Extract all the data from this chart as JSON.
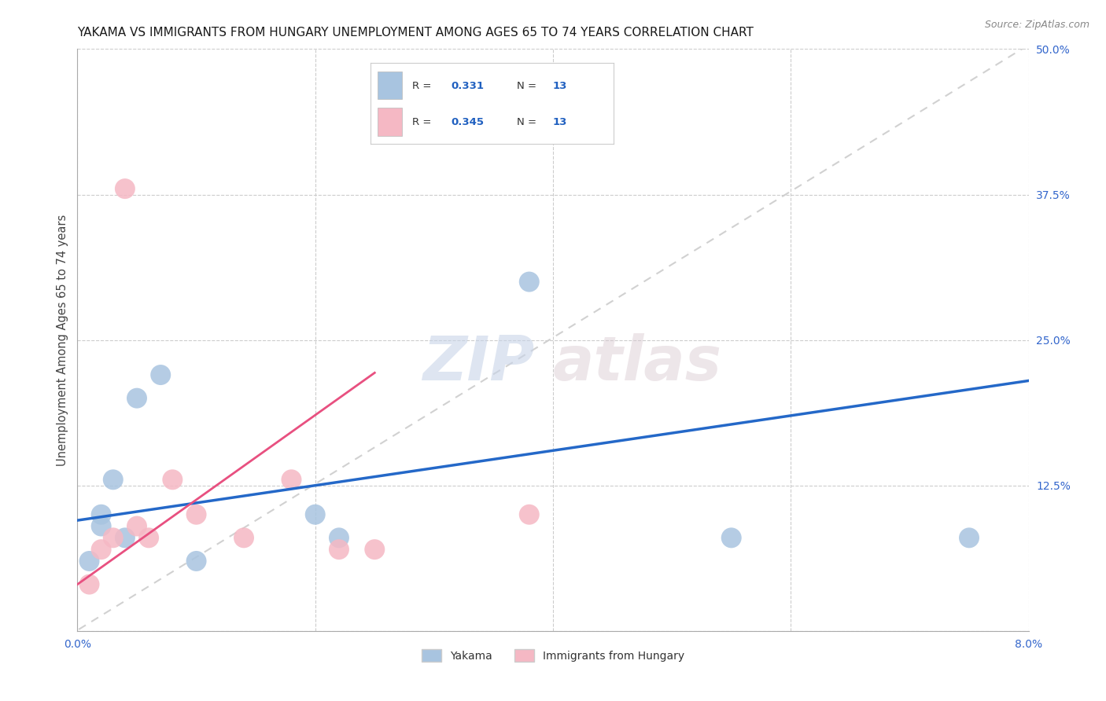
{
  "title": "YAKAMA VS IMMIGRANTS FROM HUNGARY UNEMPLOYMENT AMONG AGES 65 TO 74 YEARS CORRELATION CHART",
  "source": "Source: ZipAtlas.com",
  "ylabel": "Unemployment Among Ages 65 to 74 years",
  "xlim": [
    0.0,
    0.08
  ],
  "ylim": [
    0.0,
    0.5
  ],
  "xticks": [
    0.0,
    0.02,
    0.04,
    0.06,
    0.08
  ],
  "xticklabels": [
    "0.0%",
    "",
    "",
    "",
    "8.0%"
  ],
  "yticks": [
    0.0,
    0.125,
    0.25,
    0.375,
    0.5
  ],
  "yticklabels": [
    "",
    "12.5%",
    "25.0%",
    "37.5%",
    "50.0%"
  ],
  "yakama_x": [
    0.001,
    0.002,
    0.002,
    0.003,
    0.004,
    0.005,
    0.007,
    0.01,
    0.02,
    0.022,
    0.038,
    0.055,
    0.075
  ],
  "yakama_y": [
    0.06,
    0.09,
    0.1,
    0.13,
    0.08,
    0.2,
    0.22,
    0.06,
    0.1,
    0.08,
    0.3,
    0.08,
    0.08
  ],
  "hungary_x": [
    0.001,
    0.002,
    0.003,
    0.004,
    0.005,
    0.006,
    0.008,
    0.01,
    0.014,
    0.018,
    0.022,
    0.025,
    0.038
  ],
  "hungary_y": [
    0.04,
    0.07,
    0.08,
    0.38,
    0.09,
    0.08,
    0.13,
    0.1,
    0.08,
    0.13,
    0.07,
    0.07,
    0.1
  ],
  "yakama_color": "#a8c4e0",
  "hungary_color": "#f5b8c4",
  "yakama_line_color": "#2468c8",
  "hungary_line_color": "#e85080",
  "diagonal_color": "#cccccc",
  "r_yakama": "0.331",
  "n_yakama": "13",
  "r_hungary": "0.345",
  "n_hungary": "13",
  "legend_label_yakama": "Yakama",
  "legend_label_hungary": "Immigrants from Hungary",
  "watermark_zip": "ZIP",
  "watermark_atlas": "atlas",
  "background_color": "#ffffff",
  "title_fontsize": 11,
  "axis_label_fontsize": 10.5,
  "tick_fontsize": 10,
  "legend_fontsize": 10,
  "source_fontsize": 9
}
